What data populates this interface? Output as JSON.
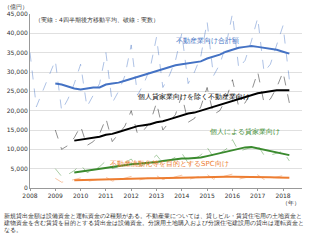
{
  "chart_data": {
    "type": "line",
    "note": "（実線：4四半期後方移動平均、破線：実数）",
    "ylabel": "（億円）",
    "xlabel": "（年）",
    "footnote": [
      "新規貸出金額は設備資金と運転資金の2種類がある。不動産業については、貸しビル・賃貸住宅用の土地資金と",
      "建物資金を含む賃貸を目的とする貸出金は設備資金。分譲用土地購入および分譲住宅建設用の貸出は運転資金となる。"
    ],
    "x": [
      2008,
      2008.25,
      2008.5,
      2008.75,
      2009,
      2009.25,
      2009.5,
      2009.75,
      2010,
      2010.25,
      2010.5,
      2010.75,
      2011,
      2011.25,
      2011.5,
      2011.75,
      2012,
      2012.25,
      2012.5,
      2012.75,
      2013,
      2013.25,
      2013.5,
      2013.75,
      2014,
      2014.25,
      2014.5,
      2014.75,
      2015,
      2015.25,
      2015.5,
      2015.75,
      2016,
      2016.25,
      2016.5,
      2016.75,
      2017,
      2017.25,
      2017.5,
      2017.75,
      2018,
      2018.25
    ],
    "series": [
      {
        "name": "不動産業向け合計額",
        "color": "#4472c4",
        "values": [
          null,
          null,
          null,
          null,
          27000,
          26750,
          26250,
          25750,
          25500,
          25750,
          26000,
          26000,
          26750,
          27000,
          27250,
          27750,
          28250,
          28750,
          29250,
          29750,
          30250,
          30750,
          31250,
          31750,
          32000,
          32250,
          32500,
          32750,
          33500,
          34000,
          34500,
          35250,
          35750,
          36250,
          36500,
          36750,
          36500,
          36250,
          36000,
          35750,
          35250,
          34750
        ],
        "actual": [
          35000,
          21000,
          25000,
          29000,
          33000,
          20000,
          23000,
          27000,
          32000,
          21000,
          24000,
          27000,
          35000,
          22000,
          25000,
          29000,
          37000,
          24000,
          27000,
          31000,
          39000,
          26000,
          29000,
          33000,
          40000,
          27000,
          30000,
          34000,
          43000,
          29000,
          32000,
          37000,
          45000,
          31000,
          33000,
          38000,
          44000,
          30000,
          32000,
          37000,
          42000,
          28000
        ]
      },
      {
        "name": "個人貸家業向けを除く不動産業向け",
        "color": "#000000",
        "values": [
          null,
          null,
          null,
          null,
          null,
          null,
          null,
          12250,
          12500,
          12750,
          13000,
          13250,
          13750,
          14000,
          14500,
          15000,
          15500,
          16000,
          16250,
          16500,
          17000,
          17250,
          17750,
          18250,
          18750,
          19250,
          19500,
          20000,
          20500,
          21000,
          21500,
          22000,
          22500,
          23000,
          23500,
          24000,
          24500,
          24750,
          25000,
          25250,
          25250,
          25250
        ],
        "actual": [
          null,
          null,
          null,
          null,
          15000,
          10000,
          11000,
          13000,
          16000,
          11000,
          12000,
          14000,
          18000,
          12000,
          14000,
          16000,
          20000,
          14000,
          15000,
          17000,
          22000,
          15000,
          17000,
          19000,
          24000,
          17000,
          18000,
          21000,
          26000,
          19000,
          20000,
          23000,
          28000,
          21000,
          22000,
          25000,
          30000,
          22000,
          23000,
          26000,
          30000,
          22000
        ]
      },
      {
        "name": "個人による貸家業向け",
        "color": "#3a8a2e",
        "values": [
          null,
          null,
          null,
          null,
          null,
          null,
          null,
          4000,
          4250,
          4500,
          4750,
          5000,
          5250,
          5500,
          5750,
          6000,
          6125,
          6250,
          6375,
          6500,
          6750,
          7000,
          7250,
          7500,
          7625,
          7625,
          7750,
          7875,
          8250,
          8625,
          9000,
          9375,
          9875,
          10250,
          10500,
          10625,
          10250,
          10000,
          9625,
          9250,
          8875,
          8500
        ],
        "actual": [
          null,
          null,
          null,
          null,
          5000,
          3000,
          3500,
          4500,
          6000,
          4000,
          4500,
          5500,
          7000,
          5000,
          5500,
          6500,
          7500,
          5500,
          6000,
          7000,
          8500,
          6500,
          7000,
          8000,
          9000,
          6500,
          7500,
          8500,
          10500,
          8000,
          9000,
          10000,
          12500,
          9500,
          10000,
          10500,
          11000,
          8500,
          8500,
          9000,
          9500,
          7000
        ]
      },
      {
        "name": "不動産流動化等を目的とするSPC向け",
        "color": "#ed7d31",
        "values": [
          null,
          null,
          null,
          null,
          null,
          null,
          null,
          2000,
          2025,
          2075,
          2125,
          2150,
          2200,
          2225,
          2250,
          2300,
          2350,
          2400,
          2450,
          2500,
          2550,
          2600,
          2650,
          2700,
          2725,
          2725,
          2750,
          2775,
          2825,
          2850,
          2875,
          2900,
          2925,
          2925,
          2900,
          2875,
          2825,
          2800,
          2775,
          2725,
          2675,
          2625
        ],
        "actual": [
          null,
          null,
          null,
          null,
          2500,
          1500,
          1800,
          2200,
          2600,
          1700,
          2000,
          2300,
          2800,
          1800,
          2100,
          2500,
          3000,
          2000,
          2300,
          2700,
          3200,
          2200,
          2500,
          2900,
          3300,
          2200,
          2600,
          3000,
          3500,
          2300,
          2700,
          3100,
          3600,
          2300,
          2600,
          3000,
          3400,
          2200,
          2500,
          2800,
          3200,
          2000
        ]
      }
    ],
    "xlim": [
      2008,
      2018.75
    ],
    "xticks": [
      2008,
      2009,
      2010,
      2011,
      2012,
      2013,
      2014,
      2015,
      2016,
      2017,
      2018
    ],
    "ylim": [
      0,
      45000
    ],
    "yticks": [
      0,
      {
        "value": 5000,
        "label": "5,000"
      },
      {
        "value": 10000,
        "label": "10,000"
      },
      {
        "value": 15000,
        "label": "15,000"
      },
      {
        "value": 20000,
        "label": "20,000"
      },
      {
        "value": 25000,
        "label": "25,000"
      },
      {
        "value": 30000,
        "label": "30,000"
      },
      {
        "value": 35000,
        "label": "35,000"
      },
      {
        "value": 40000,
        "label": "40,000"
      },
      {
        "value": 45000,
        "label": "45,000"
      }
    ],
    "grid": true
  }
}
